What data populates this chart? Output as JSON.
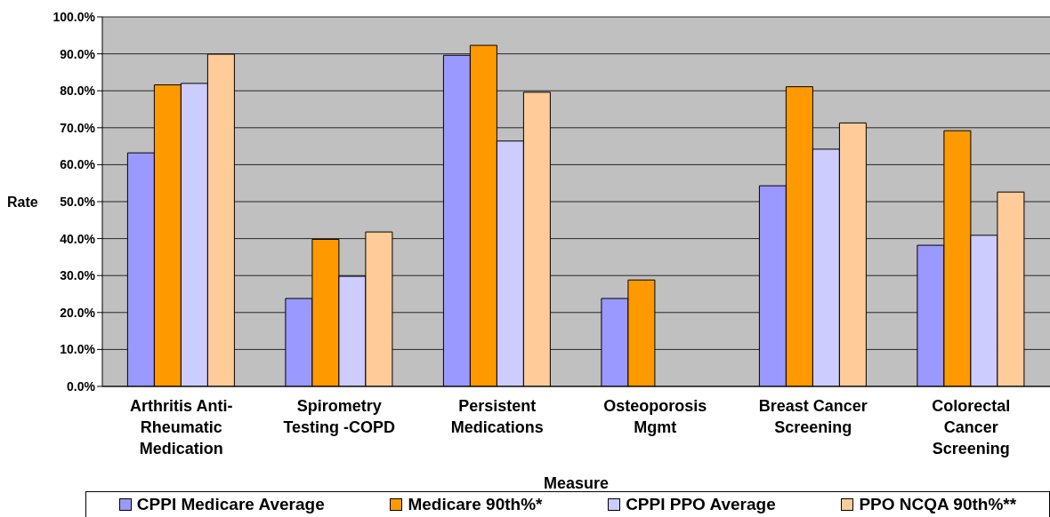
{
  "chart_data": {
    "type": "bar",
    "xlabel": "Measure",
    "ylabel": "Rate",
    "categories": [
      "Arthritis Anti-Rheumatic Medication",
      "Spirometry Testing -COPD",
      "Persistent Medications",
      "Osteoporosis Mgmt",
      "Breast Cancer Screening",
      "Colorectal Cancer Screening"
    ],
    "series": [
      {
        "name": "CPPI Medicare Average",
        "color": "#9999ff",
        "values": [
          63.2,
          23.8,
          89.6,
          23.8,
          54.3,
          38.2
        ]
      },
      {
        "name": "Medicare 90th%*",
        "color": "#ff9900",
        "values": [
          81.6,
          39.8,
          92.3,
          28.8,
          81.1,
          69.2
        ]
      },
      {
        "name": "CPPI PPO Average",
        "color": "#ccccff",
        "values": [
          82.0,
          29.8,
          66.4,
          null,
          64.2,
          40.9
        ]
      },
      {
        "name": "PPO NCQA 90th%**",
        "color": "#ffcc99",
        "values": [
          89.9,
          41.8,
          79.6,
          null,
          71.3,
          52.6
        ]
      }
    ],
    "ylim": [
      0,
      100
    ],
    "yticks": [
      {
        "value": 0,
        "label": "0.0%"
      },
      {
        "value": 10,
        "label": "10.0%"
      },
      {
        "value": 20,
        "label": "20.0%"
      },
      {
        "value": 30,
        "label": "30.0%"
      },
      {
        "value": 40,
        "label": "40.0%"
      },
      {
        "value": 50,
        "label": "50.0%"
      },
      {
        "value": 60,
        "label": "60.0%"
      },
      {
        "value": 70,
        "label": "70.0%"
      },
      {
        "value": 80,
        "label": "80.0%"
      },
      {
        "value": 90,
        "label": "90.0%"
      },
      {
        "value": 100,
        "label": "100.0%"
      }
    ],
    "grid": "y",
    "legend": "bottom"
  }
}
